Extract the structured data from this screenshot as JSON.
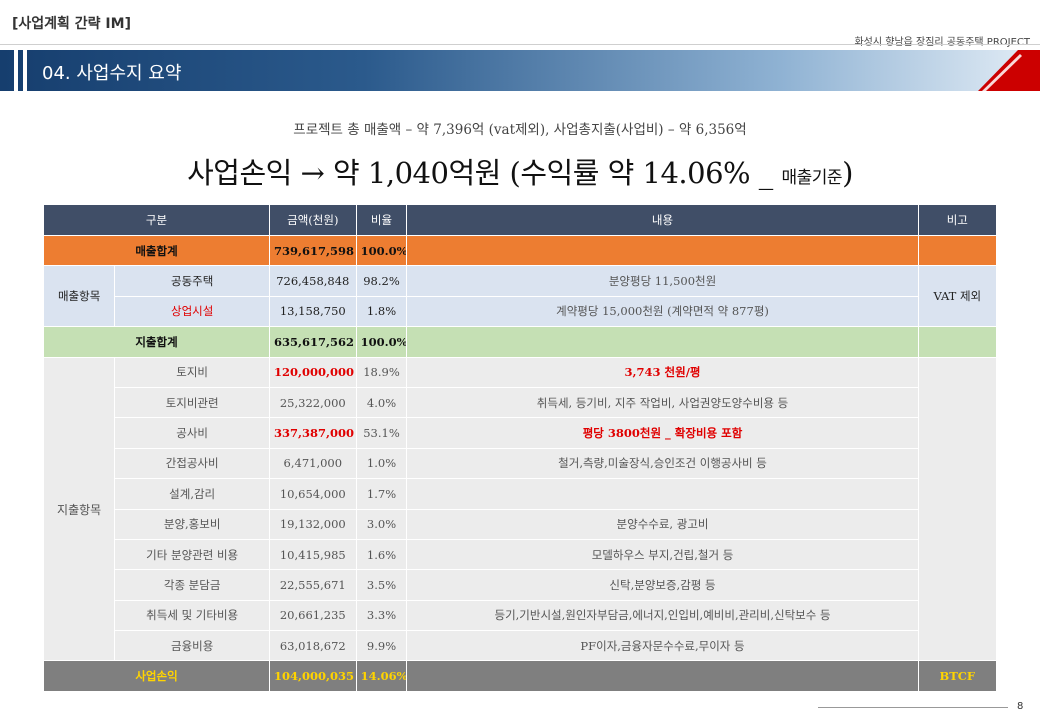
{
  "header": {
    "tag": "[사업계획 간략 IM]",
    "project": "화성시 향남읍 장짐리 공동주택 PROJECT",
    "section_title": "04. 사업수지 요약"
  },
  "summary": {
    "line1": "프로젝트 총 매출액 – 약 7,396억 (vat제외), 사업총지출(사업비) – 약 6,356억",
    "line2_main": "사업손익 → 약 1,040억원 (수익률 약 14.06% _ ",
    "line2_sub": "매출기준",
    "line2_end": ")"
  },
  "table": {
    "headers": [
      "구분",
      "금액(천원)",
      "비율",
      "내용",
      "비고"
    ],
    "sales_total": {
      "label": "매출합계",
      "amount": "739,617,598",
      "ratio": "100.0%"
    },
    "sales_group": "매출항목",
    "sales_items": [
      {
        "label": "공동주택",
        "amount": "726,458,848",
        "ratio": "98.2%",
        "content": "분양평당 11,500천원"
      },
      {
        "label": "상업시설",
        "amount": "13,158,750",
        "ratio": "1.8%",
        "content": "계약평당 15,000천원 (계약면적 약 877평)"
      }
    ],
    "sales_note": "VAT 제외",
    "expense_total": {
      "label": "지출합계",
      "amount": "635,617,562",
      "ratio": "100.0%"
    },
    "expense_group": "지출항목",
    "expense_items": [
      {
        "label": "토지비",
        "amount": "120,000,000",
        "ratio": "18.9%",
        "content": "3,743 천원/평"
      },
      {
        "label": "토지비관련",
        "amount": "25,322,000",
        "ratio": "4.0%",
        "content": "취득세, 등기비, 지주 작업비, 사업권양도양수비용 등"
      },
      {
        "label": "공사비",
        "amount": "337,387,000",
        "ratio": "53.1%",
        "content": "평당 3800천원 _ 확장비용 포함"
      },
      {
        "label": "간접공사비",
        "amount": "6,471,000",
        "ratio": "1.0%",
        "content": "철거,측량,미술장식,승인조건 이행공사비 등"
      },
      {
        "label": "설계,감리",
        "amount": "10,654,000",
        "ratio": "1.7%",
        "content": ""
      },
      {
        "label": "분양,홍보비",
        "amount": "19,132,000",
        "ratio": "3.0%",
        "content": "분양수수료, 광고비"
      },
      {
        "label": "기타 분양관련 비용",
        "amount": "10,415,985",
        "ratio": "1.6%",
        "content": "모델하우스 부지,건립,철거 등"
      },
      {
        "label": "각종 분담금",
        "amount": "22,555,671",
        "ratio": "3.5%",
        "content": "신탁,분양보증,감평 등"
      },
      {
        "label": "취득세 및 기타비용",
        "amount": "20,661,235",
        "ratio": "3.3%",
        "content": "등기,기반시설,원인자부담금,에너지,인입비,예비비,관리비,신탁보수 등"
      },
      {
        "label": "금융비용",
        "amount": "63,018,672",
        "ratio": "9.9%",
        "content": "PF이자,금융자문수수료,무이자 등"
      }
    ],
    "profit": {
      "label": "사업손익",
      "amount": "104,000,035",
      "ratio": "14.06%",
      "note": "BTCF"
    }
  },
  "footer": {
    "page": "8"
  },
  "colors": {
    "header_row": "#404e67",
    "sales_total": "#ed7d31",
    "sales_items": "#dae3f0",
    "expense_total": "#c5e0b4",
    "expense_items": "#ececec",
    "profit_row": "#7f7f7f",
    "profit_text": "#ffd400",
    "highlight_red": "#e00000"
  }
}
